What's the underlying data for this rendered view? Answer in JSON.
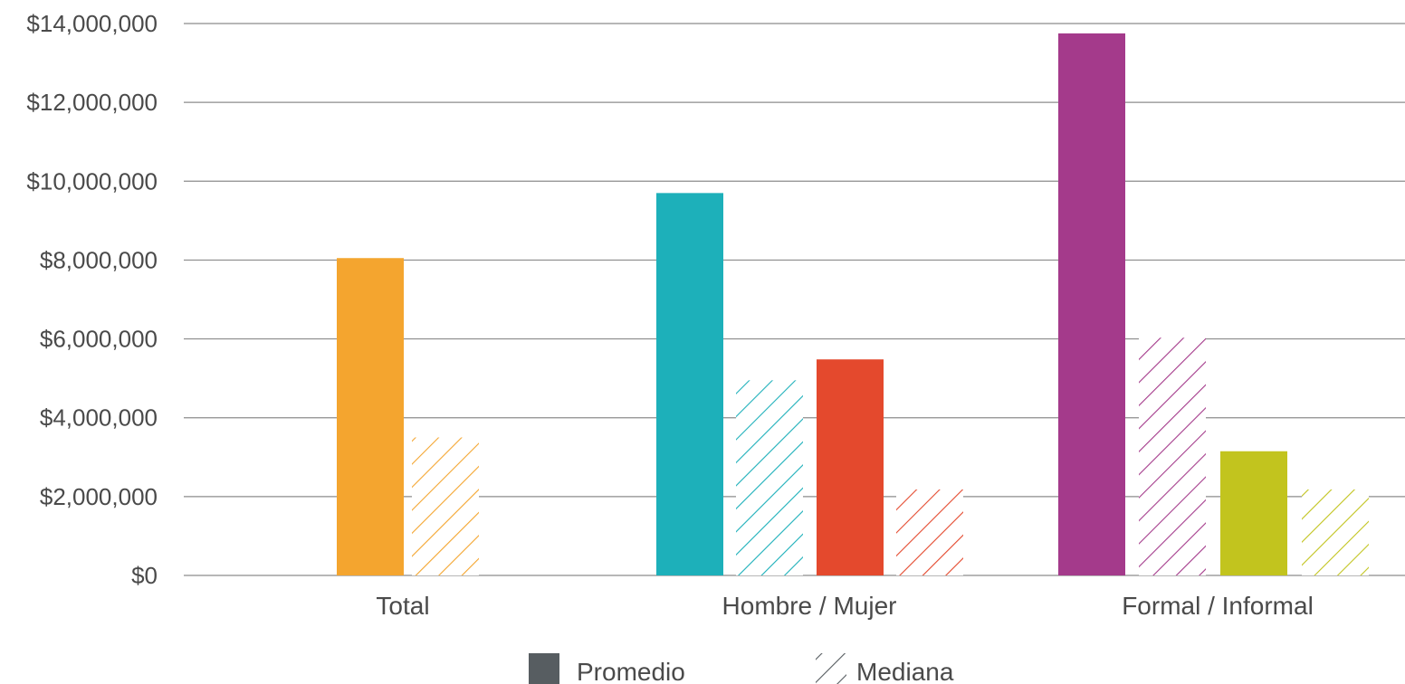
{
  "chart_data": {
    "type": "bar",
    "title": "",
    "xlabel": "",
    "ylabel": "",
    "ylim": [
      0,
      14000000
    ],
    "yticks": [
      0,
      2000000,
      4000000,
      6000000,
      8000000,
      10000000,
      12000000,
      14000000
    ],
    "ytick_labels": [
      "$0",
      "$2,000,000",
      "$4,000,000",
      "$6,000,000",
      "$8,000,000",
      "$10,000,000",
      "$12,000,000",
      "$14,000,000"
    ],
    "grid": "horizontal",
    "legend_placement": "bottom-center",
    "groups": [
      {
        "label": "Total",
        "bars": [
          {
            "stat": "Promedio",
            "value": 8050000,
            "color": "#F4A52F"
          },
          {
            "stat": "Mediana",
            "value": 3500000,
            "color": "#F4A52F"
          }
        ]
      },
      {
        "label": "Hombre / Mujer",
        "bars": [
          {
            "stat": "Promedio",
            "value": 9700000,
            "color": "#1DB0BA"
          },
          {
            "stat": "Mediana",
            "value": 4950000,
            "color": "#1DB0BA"
          },
          {
            "stat": "Promedio",
            "value": 5480000,
            "color": "#E4492D"
          },
          {
            "stat": "Mediana",
            "value": 2180000,
            "color": "#E4492D"
          }
        ]
      },
      {
        "label": "Formal / Informal",
        "bars": [
          {
            "stat": "Promedio",
            "value": 13750000,
            "color": "#A43A8B"
          },
          {
            "stat": "Mediana",
            "value": 6030000,
            "color": "#A43A8B"
          },
          {
            "stat": "Promedio",
            "value": 3150000,
            "color": "#C2C41E"
          },
          {
            "stat": "Mediana",
            "value": 2180000,
            "color": "#C2C41E"
          }
        ]
      }
    ],
    "legend": [
      {
        "label": "Promedio",
        "style": "solid",
        "color": "#575D61"
      },
      {
        "label": "Mediana",
        "style": "hatched",
        "color": "#575D61"
      }
    ]
  }
}
